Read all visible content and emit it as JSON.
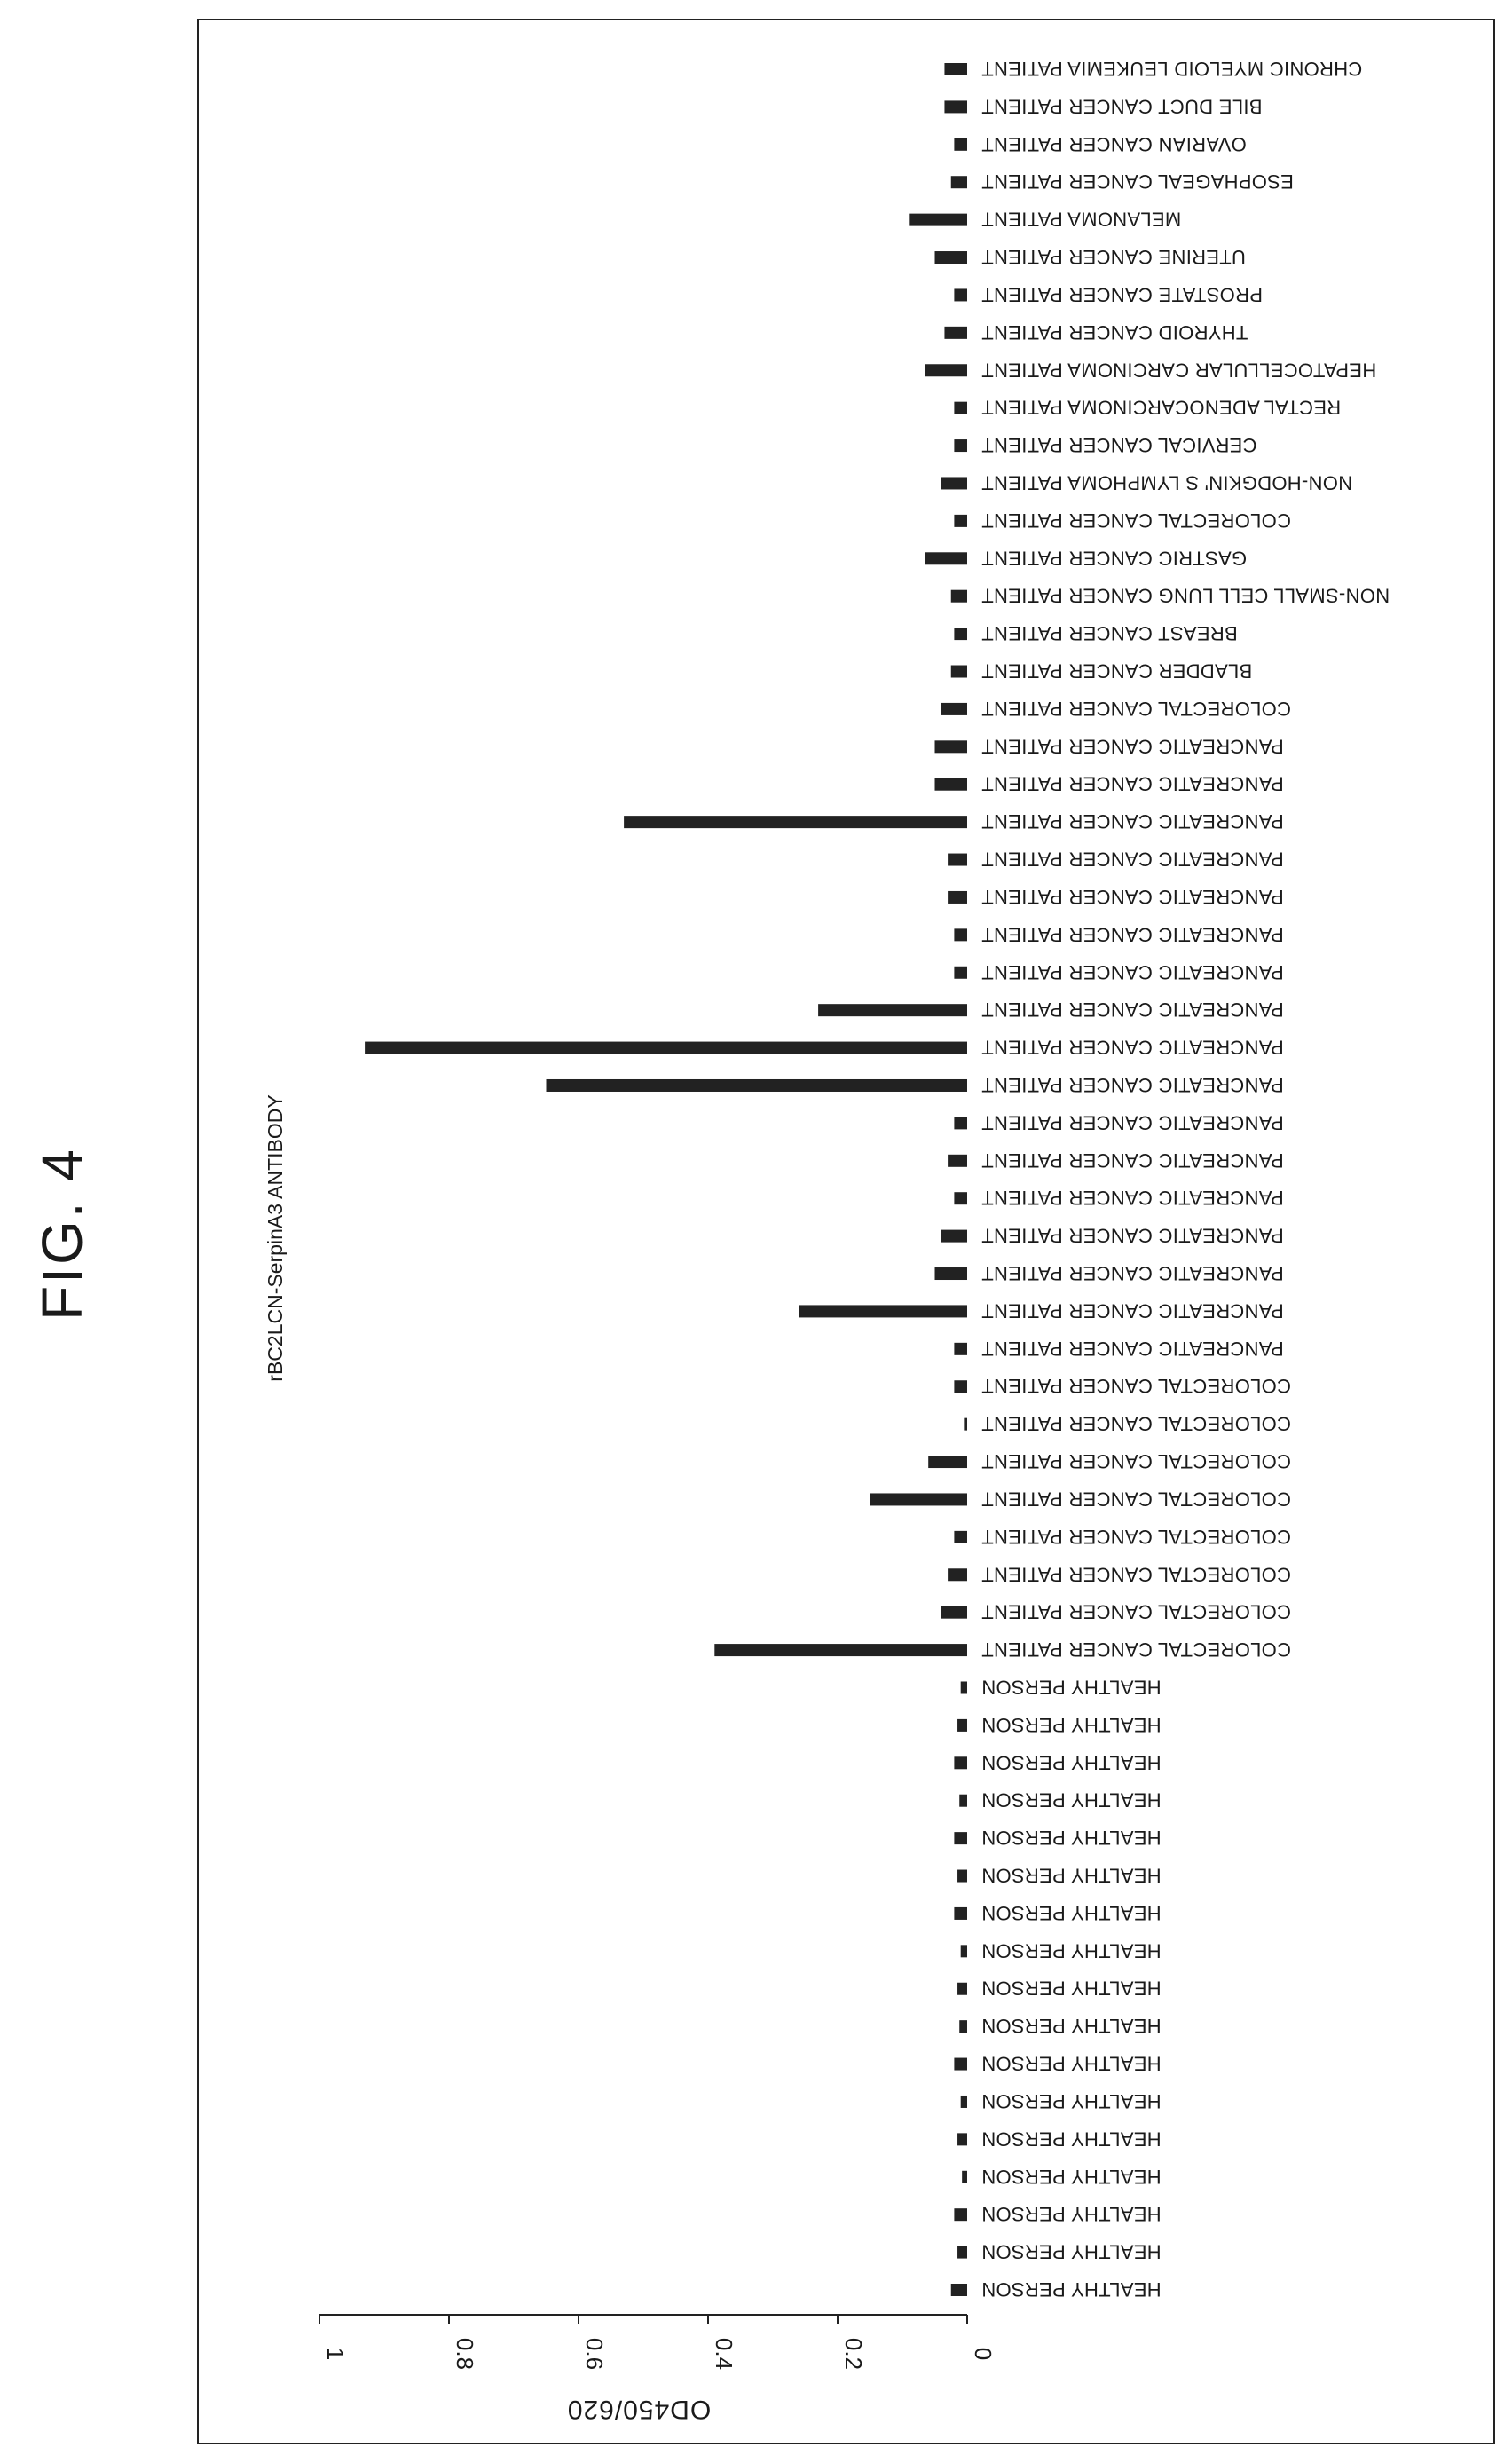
{
  "figure_label": "FIG. 4",
  "chart_data": {
    "type": "bar",
    "title": "rBC2LCN-SerpinA3 ANTIBODY",
    "ylabel": "OD450/620",
    "xlabel": "",
    "ylim": [
      0,
      1
    ],
    "y_ticks": [
      "0",
      "0.2",
      "0.4",
      "0.6",
      "0.8",
      "1"
    ],
    "color": "#222222",
    "categories": [
      "HEALTHY PERSON",
      "HEALTHY PERSON",
      "HEALTHY PERSON",
      "HEALTHY PERSON",
      "HEALTHY PERSON",
      "HEALTHY PERSON",
      "HEALTHY PERSON",
      "HEALTHY PERSON",
      "HEALTHY PERSON",
      "HEALTHY PERSON",
      "HEALTHY PERSON",
      "HEALTHY PERSON",
      "HEALTHY PERSON",
      "HEALTHY PERSON",
      "HEALTHY PERSON",
      "HEALTHY PERSON",
      "HEALTHY PERSON",
      "COLORECTAL CANCER PATIENT",
      "COLORECTAL CANCER PATIENT",
      "COLORECTAL CANCER PATIENT",
      "COLORECTAL CANCER PATIENT",
      "COLORECTAL CANCER PATIENT",
      "COLORECTAL CANCER PATIENT",
      "COLORECTAL CANCER PATIENT",
      "COLORECTAL CANCER PATIENT",
      "PANCREATIC CANCER PATIENT",
      "PANCREATIC CANCER PATIENT",
      "PANCREATIC CANCER PATIENT",
      "PANCREATIC CANCER PATIENT",
      "PANCREATIC CANCER PATIENT",
      "PANCREATIC CANCER PATIENT",
      "PANCREATIC CANCER PATIENT",
      "PANCREATIC CANCER PATIENT",
      "PANCREATIC CANCER PATIENT",
      "PANCREATIC CANCER PATIENT",
      "PANCREATIC CANCER PATIENT",
      "PANCREATIC CANCER PATIENT",
      "PANCREATIC CANCER PATIENT",
      "PANCREATIC CANCER PATIENT",
      "PANCREATIC CANCER PATIENT",
      "PANCREATIC CANCER PATIENT",
      "PANCREATIC CANCER PATIENT",
      "COLORECTAL CANCER PATIENT",
      "BLADDER CANCER PATIENT",
      "BREAST CANCER PATIENT",
      "NON-SMALL CELL LUNG CANCER PATIENT",
      "GASTRIC CANCER PATIENT",
      "COLORECTAL CANCER PATIENT",
      "NON-HODGKIN' S LYMPHOMA PATIENT",
      "CERVICAL CANCER PATIENT",
      "RECTAL ADENOCARCINOMA PATIENT",
      "HEPATOCELLULAR CARCINOMA PATIENT",
      "THYROID CANCER PATIENT",
      "PROSTATE CANCER PATIENT",
      "UTERINE CANCER PATIENT",
      "MELANOMA PATIENT",
      "ESOPHAGEAL CANCER PATIENT",
      "OVARIAN CANCER PATIENT",
      "BILE DUCT CANCER PATIENT",
      "CHRONIC MYELOID LEUKEMIA PATIENT"
    ],
    "values": [
      0.025,
      0.015,
      0.02,
      0.008,
      0.015,
      0.01,
      0.02,
      0.012,
      0.015,
      0.01,
      0.02,
      0.015,
      0.02,
      0.012,
      0.02,
      0.015,
      0.01,
      0.39,
      0.04,
      0.03,
      0.02,
      0.15,
      0.06,
      0.005,
      0.02,
      0.02,
      0.26,
      0.05,
      0.04,
      0.02,
      0.03,
      0.02,
      0.65,
      0.93,
      0.23,
      0.02,
      0.02,
      0.03,
      0.03,
      0.53,
      0.05,
      0.05,
      0.04,
      0.025,
      0.02,
      0.025,
      0.065,
      0.02,
      0.04,
      0.02,
      0.02,
      0.065,
      0.035,
      0.02,
      0.05,
      0.09,
      0.025,
      0.02,
      0.035,
      0.035
    ]
  }
}
